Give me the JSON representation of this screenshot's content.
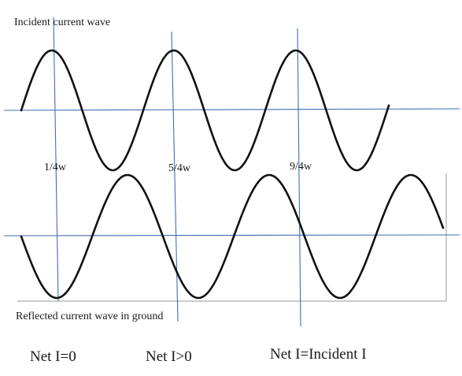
{
  "labels": {
    "top_title": "Incident current wave",
    "bottom_title": "Reflected current wave in ground",
    "marker_1": "1/4w",
    "marker_2": "5/4w",
    "marker_3": "9/4w",
    "net_1": "Net I=0",
    "net_2": "Net I>0",
    "net_3": "Net I=Incident I"
  },
  "colors": {
    "wave": "#111111",
    "axis": "#3f6fb4",
    "frame": "#9a9a9a"
  }
}
